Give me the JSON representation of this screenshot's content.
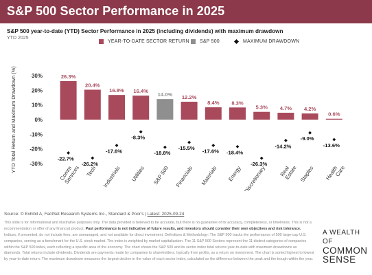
{
  "header": {
    "title": "S&P 500 Sector Performance in 2025",
    "subtitle": "S&P 500 year-to-date (YTD) Sector Performance in 2025 (including dividends) with maximum drawdown",
    "period": "YTD 2025"
  },
  "legend": {
    "items": [
      {
        "label": "YEAR-TO-DATE SECTOR RETURN",
        "color": "#a84a5c",
        "marker": "square"
      },
      {
        "label": "S&P 500",
        "color": "#8f8f8f",
        "marker": "square"
      },
      {
        "label": "MAXIMUM DRAWDOWN",
        "color": "#111111",
        "marker": "diamond"
      }
    ]
  },
  "chart_data": {
    "type": "bar",
    "categories": [
      "Comm Services",
      "Tech",
      "Industrials",
      "Utilities",
      "S&P 500",
      "Financials",
      "Materials",
      "Energy",
      "Discretionary",
      "Real Estate",
      "Staples",
      "Health Care"
    ],
    "category_lines": [
      [
        "Comm",
        "Services"
      ],
      [
        "Tech"
      ],
      [
        "Industrials"
      ],
      [
        "Utilities"
      ],
      [
        "S&P 500"
      ],
      [
        "Financials"
      ],
      [
        "Materials"
      ],
      [
        "Energy"
      ],
      [
        "Discretionary"
      ],
      [
        "Real",
        "Estate"
      ],
      [
        "Staples"
      ],
      [
        "Health",
        "Care"
      ]
    ],
    "series": [
      {
        "name": "YEAR-TO-DATE SECTOR RETURN",
        "values": [
          26.3,
          20.4,
          16.8,
          16.4,
          14.0,
          12.2,
          8.4,
          8.3,
          5.3,
          4.7,
          4.2,
          0.6
        ],
        "value_labels": [
          "26.3%",
          "20.4%",
          "16.8%",
          "16.4%",
          "14.0%",
          "12.2%",
          "8.4%",
          "8.3%",
          "5.3%",
          "4.7%",
          "4.2%",
          "0.6%"
        ]
      },
      {
        "name": "MAXIMUM DRAWDOWN",
        "values": [
          -22.7,
          -26.2,
          -17.6,
          -8.3,
          -18.8,
          -15.5,
          -17.6,
          -18.4,
          -26.3,
          -14.2,
          -9.0,
          -13.6
        ],
        "value_labels": [
          "-22.7%",
          "-26.2%",
          "-17.6%",
          "-8.3%",
          "-18.8%",
          "-15.5%",
          "-17.6%",
          "-18.4%",
          "-26.3%",
          "-14.2%",
          "-9.0%",
          "-13.6%"
        ]
      }
    ],
    "highlight_category": "S&P 500",
    "bar_color": "#a84a5c",
    "highlight_color": "#8f8f8f",
    "drawdown_color": "#111111",
    "ylabel": "YTD Total Return and Maximum Drawdown (%)",
    "ylim": [
      -30,
      30
    ],
    "yticks": [
      30,
      20,
      10,
      0,
      -10,
      -20,
      -30
    ],
    "ytick_labels": [
      "30%",
      "20%",
      "10%",
      "0%",
      "-10%",
      "-20%",
      "-30%"
    ],
    "grid": false
  },
  "footer": {
    "source": "Source: © Exhibit A, FactSet Research Systems Inc., Standard & Poor's |",
    "source_date": "Latest: 2025-09-24",
    "disclaimer_start": "This slide is for informational and illustrative purposes only. The data provided is believed to be accurate, but there is no guarantee of its accuracy, completeness, or timeliness. This is not a recommendation or offer of any financial product.",
    "disclaimer_bold": "Past performance is not indicative of future results, and investors should consider their own objectives and risk tolerance.",
    "disclaimer_end": "Indices, if presented, do not include fees, are unmanaged, and not available for direct investment. Definitions & Methodology: The S&P 500 tracks the performance of 500 large-cap U.S. companies, serving as a benchmark for the U.S. stock market. The index is weighted by market capitalization. The 11 S&P 500 Sectors represent the 11 distinct categories of companies within the S&P 500 index, each reflecting a specific area of the economy. The chart shows the S&P 500 and its sector index total returns year-to-date with maximum drawdowns as diamonds. Total returns include dividends. Dividends are payments made by companies to shareholders, typically from profits, as a return on investment. The chart is sorted highest to lowest by year-to-date return. The maximum drawdown measures the largest decline in the value of each sector index, calculated as the difference between the peak and the trough within the year."
  },
  "logo": {
    "line1": "A WEALTH OF",
    "line2": "COMMON",
    "line3": "SENSE"
  }
}
